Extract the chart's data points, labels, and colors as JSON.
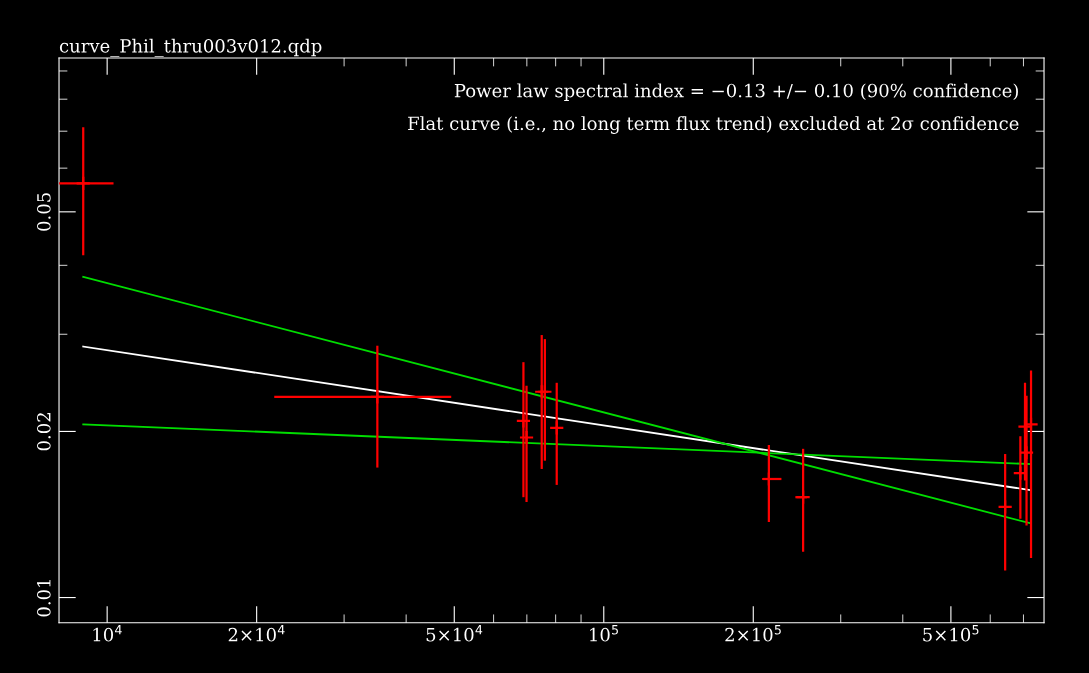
{
  "chart_data": {
    "type": "scatter",
    "title": "curve_Phil_thru003v012.qdp",
    "annotations": [
      "Power law spectral index = −0.13 +/− 0.10 (90% confidence)",
      "Flat curve (i.e., no long term flux trend) excluded at 2σ confidence"
    ],
    "log": "xy",
    "grid": false,
    "legend": false,
    "xlim": [
      8000,
      770000
    ],
    "ylim": [
      0.009,
      0.095
    ],
    "xticks": [
      {
        "value": 10000,
        "label": "10$^{4}$"
      },
      {
        "value": 20000,
        "label": "2×10$^{4}$"
      },
      {
        "value": 30000,
        "label": null
      },
      {
        "value": 40000,
        "label": null
      },
      {
        "value": 50000,
        "label": "5×10$^{4}$"
      },
      {
        "value": 60000,
        "label": null
      },
      {
        "value": 70000,
        "label": null
      },
      {
        "value": 80000,
        "label": null
      },
      {
        "value": 90000,
        "label": null
      },
      {
        "value": 100000,
        "label": "10$^{5}$"
      },
      {
        "value": 200000,
        "label": "2×10$^{5}$"
      },
      {
        "value": 300000,
        "label": null
      },
      {
        "value": 400000,
        "label": null
      },
      {
        "value": 500000,
        "label": "5×10$^{5}$"
      },
      {
        "value": 600000,
        "label": null
      },
      {
        "value": 700000,
        "label": null
      }
    ],
    "yticks": [
      {
        "value": 0.01,
        "label": "0.01"
      },
      {
        "value": 0.02,
        "label": "0.02"
      },
      {
        "value": 0.03,
        "label": null
      },
      {
        "value": 0.04,
        "label": null
      },
      {
        "value": 0.05,
        "label": "0.05"
      },
      {
        "value": 0.06,
        "label": null
      },
      {
        "value": 0.07,
        "label": null
      },
      {
        "value": 0.08,
        "label": null
      },
      {
        "value": 0.09,
        "label": null
      }
    ],
    "series": [
      {
        "color": "#ff0000",
        "marker": "cross",
        "x": [
          8950,
          35000,
          68900,
          69900,
          75000,
          76100,
          80400,
          215000,
          252000,
          643000,
          690000,
          705000,
          710000,
          725000
        ],
        "values": [
          0.0563,
          0.0231,
          0.0209,
          0.0195,
          0.0236,
          0.0236,
          0.0203,
          0.0164,
          0.0152,
          0.0146,
          0.0168,
          0.0204,
          0.0183,
          0.0206
        ],
        "errors": [
          [
            0.0417,
            0.0712
          ],
          [
            0.0172,
            0.0286
          ],
          [
            0.0152,
            0.0267
          ],
          [
            0.0149,
            0.0242
          ],
          [
            0.0171,
            0.0299
          ],
          [
            0.0177,
            0.0294
          ],
          [
            0.016,
            0.0245
          ],
          [
            0.0137,
            0.0189
          ],
          [
            0.0121,
            0.0186
          ],
          [
            0.0112,
            0.0182
          ],
          [
            0.0139,
            0.0196
          ],
          [
            0.0163,
            0.0245
          ],
          [
            0.0135,
            0.0232
          ],
          [
            0.0118,
            0.0258
          ]
        ],
        "xerrors": [
          [
            8000,
            10300
          ],
          [
            21700,
            49300
          ],
          null,
          null,
          null,
          null,
          null,
          [
            208800,
            227900
          ],
          [
            243100,
            256600
          ],
          null,
          null,
          null,
          null,
          null
        ]
      },
      {
        "type": "line",
        "color": "#ffffff",
        "x": [
          8950,
          725000
        ],
        "values": [
          0.0285,
          0.01565
        ]
      },
      {
        "type": "line",
        "color": "#00dd00",
        "x": [
          8950,
          725000
        ],
        "values": [
          0.0381,
          0.01362
        ]
      },
      {
        "type": "line",
        "color": "#00dd00",
        "x": [
          8950,
          725000
        ],
        "values": [
          0.0206,
          0.01745
        ]
      }
    ]
  }
}
